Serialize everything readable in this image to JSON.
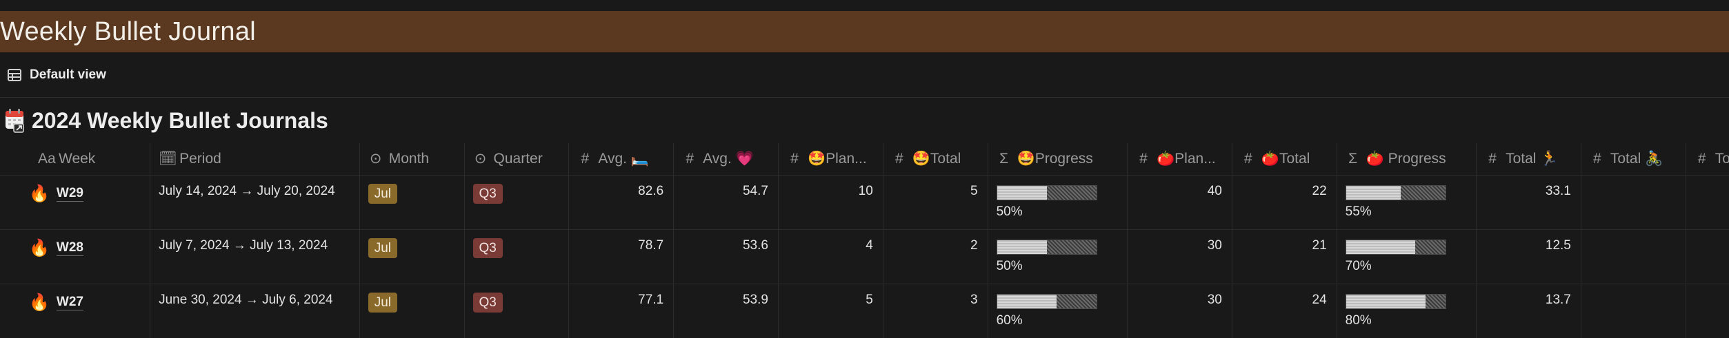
{
  "page": {
    "title": "Weekly Bullet Journal"
  },
  "view": {
    "label": "Default view"
  },
  "database": {
    "title": "2024 Weekly Bullet Journals"
  },
  "columns": [
    {
      "icon": "Aa",
      "label": "Week"
    },
    {
      "icon": "calendar-icon",
      "label": "Period"
    },
    {
      "icon": "select-icon",
      "label": "Month"
    },
    {
      "icon": "select-icon",
      "label": "Quarter"
    },
    {
      "icon": "#",
      "label": "Avg. 🛏️"
    },
    {
      "icon": "#",
      "label": "Avg. 💗"
    },
    {
      "icon": "#",
      "label": "🤩Plan..."
    },
    {
      "icon": "#",
      "label": "🤩Total"
    },
    {
      "icon": "Σ",
      "label": "🤩Progress"
    },
    {
      "icon": "#",
      "label": "🍅Plan..."
    },
    {
      "icon": "#",
      "label": "🍅Total"
    },
    {
      "icon": "Σ",
      "label": "🍅 Progress"
    },
    {
      "icon": "#",
      "label": "Total 🏃"
    },
    {
      "icon": "#",
      "label": "Total 🚴"
    },
    {
      "icon": "#",
      "label": "Total"
    }
  ],
  "rows": [
    {
      "icon": "🔥",
      "week": "W29",
      "period": "July 14, 2024 → July 20, 2024",
      "month": "Jul",
      "quarter": "Q3",
      "avg_sleep": "82.6",
      "avg_heart": "54.7",
      "fun_plan": "10",
      "fun_total": "5",
      "fun_progress": 0.5,
      "fun_progress_label": "50%",
      "tomato_plan": "40",
      "tomato_total": "22",
      "tomato_progress": 0.55,
      "tomato_progress_label": "55%",
      "total_run": "33.1",
      "total_bike": "",
      "total_other": ""
    },
    {
      "icon": "🔥",
      "week": "W28",
      "period": "July 7, 2024 → July 13, 2024",
      "month": "Jul",
      "quarter": "Q3",
      "avg_sleep": "78.7",
      "avg_heart": "53.6",
      "fun_plan": "4",
      "fun_total": "2",
      "fun_progress": 0.5,
      "fun_progress_label": "50%",
      "tomato_plan": "30",
      "tomato_total": "21",
      "tomato_progress": 0.7,
      "tomato_progress_label": "70%",
      "total_run": "12.5",
      "total_bike": "",
      "total_other": ""
    },
    {
      "icon": "🔥",
      "week": "W27",
      "period": "June 30, 2024 → July 6, 2024",
      "month": "Jul",
      "quarter": "Q3",
      "avg_sleep": "77.1",
      "avg_heart": "53.9",
      "fun_plan": "5",
      "fun_total": "3",
      "fun_progress": 0.6,
      "fun_progress_label": "60%",
      "tomato_plan": "30",
      "tomato_total": "24",
      "tomato_progress": 0.8,
      "tomato_progress_label": "80%",
      "total_run": "13.7",
      "total_bike": "",
      "total_other": ""
    }
  ],
  "colors": {
    "banner": "#5b3921",
    "month_tag": "#8a6a2b",
    "quarter_tag": "#7a3a36",
    "background": "#191919"
  }
}
